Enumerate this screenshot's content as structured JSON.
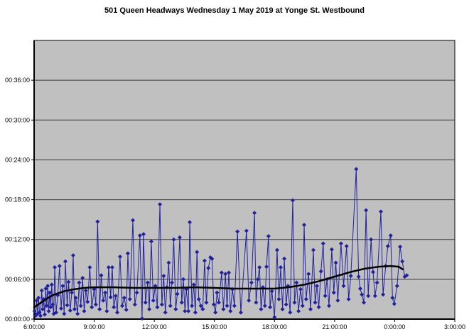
{
  "header": {
    "title": "501 Queen Headways Wednesday 1 May 2019 at Yonge St. Westbound"
  },
  "colors": {
    "plot_background": "#c0c0c0",
    "outer_background": "#ffffff",
    "gridline": "#3a3a3a",
    "axis": "#000000",
    "series_blue": "#2121a0",
    "trend_black": "#000000",
    "text": "#000000"
  },
  "chart_data": {
    "type": "line",
    "title": "501 Queen Headways Wednesday 1 May 2019 at Yonge St. Westbound",
    "xlabel": "",
    "ylabel": "",
    "x_axis": {
      "unit": "time of day",
      "tick_hours": [
        6,
        9,
        12,
        15,
        18,
        21,
        24,
        27
      ],
      "tick_labels": [
        "6:00:00",
        "9:00:00",
        "12:00:00",
        "15:00:00",
        "18:00:00",
        "21:00:00",
        "0:00:00",
        "3:00:00"
      ],
      "range_hours": [
        6,
        27
      ]
    },
    "y_axis": {
      "unit": "headway (hh:mm:ss)",
      "tick_minutes": [
        0,
        6,
        12,
        18,
        24,
        30,
        36
      ],
      "tick_labels": [
        "00:00:00",
        "00:06:00",
        "00:12:00",
        "00:18:00",
        "00:24:00",
        "00:30:00",
        "00:36:00"
      ],
      "range_minutes": [
        0,
        42
      ]
    },
    "grid": true,
    "legend": "none",
    "series": [
      {
        "name": "headways",
        "style": "line-with-diamond-markers",
        "color": "#2121a0",
        "points_hour_minutes": [
          [
            6.02,
            1.2
          ],
          [
            6.07,
            0.5
          ],
          [
            6.12,
            2.8
          ],
          [
            6.17,
            0.8
          ],
          [
            6.22,
            3.2
          ],
          [
            6.27,
            1.0
          ],
          [
            6.32,
            0.5
          ],
          [
            6.38,
            4.3
          ],
          [
            6.43,
            1.5
          ],
          [
            6.48,
            3.0
          ],
          [
            6.53,
            0.7
          ],
          [
            6.58,
            4.6
          ],
          [
            6.63,
            2.0
          ],
          [
            6.68,
            5.0
          ],
          [
            6.73,
            1.2
          ],
          [
            6.78,
            4.0
          ],
          [
            6.83,
            1.8
          ],
          [
            6.88,
            5.2
          ],
          [
            6.93,
            2.2
          ],
          [
            6.98,
            0.8
          ],
          [
            7.03,
            7.8
          ],
          [
            7.1,
            1.0
          ],
          [
            7.18,
            3.6
          ],
          [
            7.27,
            8.0
          ],
          [
            7.35,
            1.6
          ],
          [
            7.43,
            5.0
          ],
          [
            7.5,
            0.8
          ],
          [
            7.56,
            8.7
          ],
          [
            7.65,
            2.1
          ],
          [
            7.72,
            5.6
          ],
          [
            7.8,
            1.3
          ],
          [
            7.88,
            4.0
          ],
          [
            7.95,
            9.6
          ],
          [
            8.02,
            1.5
          ],
          [
            8.08,
            3.2
          ],
          [
            8.17,
            0.8
          ],
          [
            8.25,
            5.5
          ],
          [
            8.33,
            2.0
          ],
          [
            8.42,
            6.2
          ],
          [
            8.5,
            1.2
          ],
          [
            8.58,
            4.3
          ],
          [
            8.67,
            2.6
          ],
          [
            8.78,
            7.8
          ],
          [
            8.88,
            1.8
          ],
          [
            9.0,
            4.5
          ],
          [
            9.08,
            2.2
          ],
          [
            9.17,
            14.7
          ],
          [
            9.27,
            1.5
          ],
          [
            9.35,
            6.6
          ],
          [
            9.45,
            2.8
          ],
          [
            9.55,
            4.0
          ],
          [
            9.63,
            1.2
          ],
          [
            9.72,
            7.8
          ],
          [
            9.82,
            3.3
          ],
          [
            9.9,
            7.8
          ],
          [
            9.98,
            1.8
          ],
          [
            10.07,
            3.5
          ],
          [
            10.15,
            1.0
          ],
          [
            10.29,
            9.4
          ],
          [
            10.4,
            2.0
          ],
          [
            10.5,
            3.2
          ],
          [
            10.6,
            1.4
          ],
          [
            10.68,
            9.9
          ],
          [
            10.78,
            3.0
          ],
          [
            10.93,
            14.9
          ],
          [
            11.03,
            2.2
          ],
          [
            11.13,
            4.0
          ],
          [
            11.28,
            12.6
          ],
          [
            11.39,
            0.1
          ],
          [
            11.46,
            12.8
          ],
          [
            11.56,
            2.5
          ],
          [
            11.67,
            5.5
          ],
          [
            11.75,
            1.5
          ],
          [
            11.85,
            11.7
          ],
          [
            11.95,
            2.8
          ],
          [
            12.05,
            5.0
          ],
          [
            12.15,
            1.8
          ],
          [
            12.28,
            17.3
          ],
          [
            12.38,
            2.2
          ],
          [
            12.47,
            6.5
          ],
          [
            12.55,
            1.0
          ],
          [
            12.63,
            4.8
          ],
          [
            12.72,
            8.5
          ],
          [
            12.8,
            2.0
          ],
          [
            12.88,
            5.5
          ],
          [
            12.97,
            12.0
          ],
          [
            13.07,
            1.5
          ],
          [
            13.15,
            3.8
          ],
          [
            13.27,
            12.3
          ],
          [
            13.37,
            2.5
          ],
          [
            13.45,
            6.0
          ],
          [
            13.53,
            1.2
          ],
          [
            13.6,
            4.5
          ],
          [
            13.7,
            1.2
          ],
          [
            13.77,
            14.6
          ],
          [
            13.88,
            2.0
          ],
          [
            13.97,
            5.2
          ],
          [
            14.05,
            1.0
          ],
          [
            14.13,
            10.1
          ],
          [
            14.22,
            3.0
          ],
          [
            14.32,
            2.0
          ],
          [
            14.42,
            1.5
          ],
          [
            14.51,
            8.8
          ],
          [
            14.6,
            2.5
          ],
          [
            14.7,
            7.7
          ],
          [
            14.8,
            9.3
          ],
          [
            14.88,
            9.1
          ],
          [
            14.97,
            2.2
          ],
          [
            15.05,
            1.0
          ],
          [
            15.13,
            4.0
          ],
          [
            15.22,
            2.5
          ],
          [
            15.36,
            7.0
          ],
          [
            15.45,
            1.5
          ],
          [
            15.55,
            6.8
          ],
          [
            15.63,
            2.0
          ],
          [
            15.72,
            7.0
          ],
          [
            15.8,
            1.2
          ],
          [
            15.9,
            4.5
          ],
          [
            16.0,
            2.0
          ],
          [
            16.15,
            13.2
          ],
          [
            16.32,
            1.0
          ],
          [
            16.6,
            13.3
          ],
          [
            16.72,
            2.8
          ],
          [
            16.85,
            5.5
          ],
          [
            17.0,
            16.0
          ],
          [
            17.08,
            2.5
          ],
          [
            17.17,
            6.0
          ],
          [
            17.25,
            7.8
          ],
          [
            17.33,
            1.5
          ],
          [
            17.42,
            4.8
          ],
          [
            17.52,
            2.0
          ],
          [
            17.6,
            7.9
          ],
          [
            17.7,
            12.5
          ],
          [
            17.78,
            1.8
          ],
          [
            17.87,
            4.2
          ],
          [
            18.0,
            0.3
          ],
          [
            18.13,
            10.4
          ],
          [
            18.22,
            3.0
          ],
          [
            18.31,
            7.8
          ],
          [
            18.4,
            1.5
          ],
          [
            18.49,
            9.1
          ],
          [
            18.58,
            2.2
          ],
          [
            18.67,
            5.0
          ],
          [
            18.78,
            1.0
          ],
          [
            18.91,
            17.9
          ],
          [
            19.0,
            2.5
          ],
          [
            19.1,
            5.5
          ],
          [
            19.2,
            1.2
          ],
          [
            19.3,
            4.5
          ],
          [
            19.4,
            2.0
          ],
          [
            19.48,
            14.2
          ],
          [
            19.58,
            3.0
          ],
          [
            19.7,
            6.8
          ],
          [
            19.8,
            1.5
          ],
          [
            19.94,
            10.4
          ],
          [
            20.03,
            2.5
          ],
          [
            20.12,
            5.0
          ],
          [
            20.21,
            1.8
          ],
          [
            20.32,
            7.2
          ],
          [
            20.43,
            11.4
          ],
          [
            20.53,
            3.5
          ],
          [
            20.62,
            6.0
          ],
          [
            20.72,
            2.0
          ],
          [
            20.86,
            10.5
          ],
          [
            20.96,
            4.0
          ],
          [
            21.06,
            8.5
          ],
          [
            21.16,
            2.8
          ],
          [
            21.32,
            11.4
          ],
          [
            21.45,
            5.0
          ],
          [
            21.6,
            11.0
          ],
          [
            21.7,
            3.0
          ],
          [
            21.81,
            6.5
          ],
          [
            22.08,
            22.6
          ],
          [
            22.2,
            6.4
          ],
          [
            22.28,
            4.6
          ],
          [
            22.36,
            3.7
          ],
          [
            22.46,
            2.5
          ],
          [
            22.57,
            16.4
          ],
          [
            22.68,
            3.5
          ],
          [
            22.82,
            12.0
          ],
          [
            22.92,
            7.1
          ],
          [
            23.02,
            3.5
          ],
          [
            23.12,
            5.5
          ],
          [
            23.31,
            16.2
          ],
          [
            23.42,
            3.7
          ],
          [
            23.55,
            8.0
          ],
          [
            23.66,
            11.0
          ],
          [
            23.8,
            12.6
          ],
          [
            23.89,
            3.2
          ],
          [
            23.98,
            2.3
          ],
          [
            24.12,
            5.0
          ],
          [
            24.27,
            10.9
          ],
          [
            24.38,
            8.7
          ],
          [
            24.5,
            6.4
          ],
          [
            24.6,
            6.6
          ]
        ]
      },
      {
        "name": "trend",
        "style": "thick-smooth-line",
        "color": "#000000",
        "points_hour_minutes": [
          [
            6.0,
            1.8
          ],
          [
            6.3,
            2.4
          ],
          [
            6.7,
            3.2
          ],
          [
            7.0,
            3.7
          ],
          [
            7.5,
            4.2
          ],
          [
            8.0,
            4.5
          ],
          [
            8.5,
            4.7
          ],
          [
            9.0,
            4.8
          ],
          [
            10.0,
            4.8
          ],
          [
            11.0,
            4.7
          ],
          [
            12.0,
            4.7
          ],
          [
            13.0,
            4.7
          ],
          [
            14.0,
            4.8
          ],
          [
            15.0,
            4.7
          ],
          [
            16.0,
            4.6
          ],
          [
            17.0,
            4.6
          ],
          [
            18.0,
            4.6
          ],
          [
            18.7,
            4.8
          ],
          [
            19.5,
            5.2
          ],
          [
            20.2,
            5.7
          ],
          [
            21.0,
            6.4
          ],
          [
            21.8,
            7.1
          ],
          [
            22.5,
            7.6
          ],
          [
            23.2,
            7.9
          ],
          [
            23.8,
            8.0
          ],
          [
            24.2,
            7.9
          ],
          [
            24.4,
            7.5
          ]
        ]
      }
    ]
  }
}
